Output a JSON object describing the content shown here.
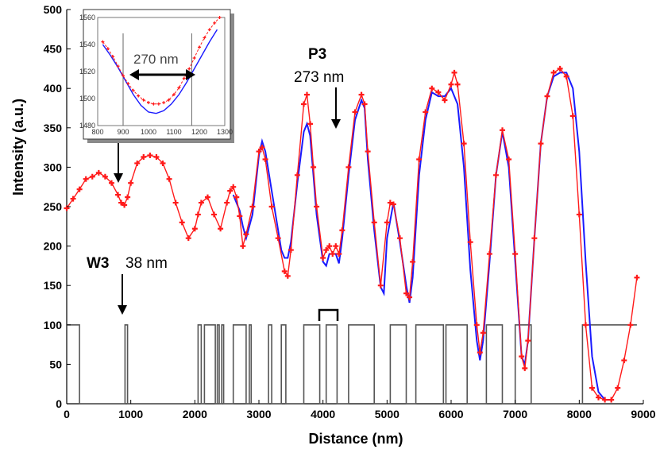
{
  "chart_data": {
    "type": "line",
    "xlabel": "Distance (nm)",
    "ylabel": "Intensity (a.u.)",
    "xlim": [
      0,
      9000
    ],
    "ylim": [
      0,
      500
    ],
    "x_ticks": [
      "0",
      "1000",
      "2000",
      "3000",
      "4000",
      "5000",
      "6000",
      "7000",
      "8000",
      "9000"
    ],
    "y_ticks": [
      "0",
      "50",
      "100",
      "150",
      "200",
      "250",
      "300",
      "350",
      "400",
      "450",
      "500"
    ],
    "colors": {
      "measured": "#ff1a1a",
      "fit": "#1a1aff",
      "pattern": "#555555"
    },
    "series": [
      {
        "style": "red-markers",
        "x": [
          0,
          100,
          200,
          300,
          400,
          500,
          600,
          700,
          800,
          850,
          900,
          950,
          1000,
          1100,
          1200,
          1300,
          1400,
          1500,
          1600,
          1700,
          1800,
          1900,
          2000,
          2050,
          2100,
          2200,
          2300,
          2400,
          2500,
          2550,
          2600,
          2650,
          2700,
          2750,
          2800,
          2900,
          3000,
          3050,
          3100,
          3200,
          3300,
          3400,
          3450,
          3500,
          3600,
          3700,
          3750,
          3800,
          3850,
          3900,
          4000,
          4050,
          4100,
          4150,
          4200,
          4250,
          4300,
          4400,
          4500,
          4600,
          4650,
          4700,
          4800,
          4900,
          5000,
          5050,
          5100,
          5200,
          5300,
          5350,
          5400,
          5500,
          5600,
          5700,
          5800,
          5900,
          6000,
          6050,
          6100,
          6200,
          6300,
          6400,
          6450,
          6500,
          6600,
          6700,
          6800,
          6900,
          7000,
          7100,
          7150,
          7200,
          7300,
          7400,
          7500,
          7600,
          7700,
          7800,
          7900,
          8000,
          8100,
          8200,
          8300,
          8400,
          8500,
          8600,
          8700,
          8800,
          8900
        ],
        "y": [
          248,
          260,
          272,
          285,
          288,
          293,
          288,
          280,
          265,
          255,
          252,
          262,
          280,
          305,
          313,
          315,
          313,
          305,
          285,
          255,
          230,
          210,
          222,
          240,
          255,
          262,
          240,
          222,
          255,
          270,
          275,
          262,
          238,
          200,
          215,
          250,
          320,
          325,
          310,
          250,
          210,
          168,
          162,
          195,
          290,
          380,
          392,
          355,
          300,
          250,
          185,
          195,
          200,
          190,
          200,
          190,
          220,
          300,
          370,
          392,
          380,
          320,
          230,
          150,
          230,
          255,
          253,
          210,
          140,
          135,
          180,
          310,
          370,
          400,
          395,
          385,
          405,
          420,
          405,
          330,
          205,
          100,
          65,
          90,
          190,
          290,
          347,
          310,
          190,
          60,
          45,
          80,
          210,
          330,
          390,
          420,
          425,
          415,
          365,
          240,
          100,
          20,
          8,
          5,
          5,
          20,
          55,
          100,
          160
        ]
      },
      {
        "style": "blue-line",
        "x": [
          2600,
          2700,
          2750,
          2800,
          2900,
          3000,
          3050,
          3100,
          3200,
          3300,
          3350,
          3400,
          3450,
          3500,
          3600,
          3700,
          3750,
          3800,
          3850,
          3900,
          4000,
          4050,
          4100,
          4150,
          4200,
          4250,
          4300,
          4400,
          4500,
          4600,
          4650,
          4700,
          4800,
          4900,
          4950,
          5000,
          5100,
          5200,
          5300,
          5350,
          5400,
          5500,
          5600,
          5700,
          5800,
          5900,
          6000,
          6100,
          6200,
          6300,
          6400,
          6450,
          6500,
          6600,
          6700,
          6800,
          6900,
          7000,
          7100,
          7150,
          7200,
          7300,
          7400,
          7500,
          7600,
          7700,
          7800,
          7900,
          8000,
          8100,
          8200,
          8300,
          8400,
          8500
        ],
        "y": [
          265,
          245,
          225,
          210,
          240,
          315,
          333,
          320,
          270,
          220,
          195,
          185,
          185,
          205,
          280,
          345,
          355,
          340,
          290,
          240,
          180,
          175,
          190,
          190,
          190,
          178,
          210,
          290,
          360,
          385,
          375,
          310,
          220,
          148,
          140,
          210,
          255,
          205,
          150,
          128,
          160,
          290,
          360,
          395,
          390,
          390,
          400,
          380,
          300,
          170,
          80,
          55,
          80,
          180,
          290,
          345,
          300,
          180,
          60,
          50,
          80,
          210,
          330,
          390,
          415,
          420,
          420,
          400,
          320,
          180,
          60,
          15,
          5,
          5
        ]
      },
      {
        "style": "gray-step",
        "x": [
          0,
          200,
          200,
          910,
          910,
          950,
          950,
          2050,
          2050,
          2100,
          2100,
          2150,
          2150,
          2320,
          2320,
          2350,
          2350,
          2380,
          2380,
          2420,
          2420,
          2450,
          2450,
          2600,
          2600,
          2800,
          2800,
          2850,
          2850,
          2880,
          2880,
          3150,
          3150,
          3200,
          3200,
          3350,
          3350,
          3420,
          3420,
          3700,
          3700,
          3950,
          3950,
          4050,
          4050,
          4220,
          4220,
          4400,
          4400,
          4800,
          4800,
          5050,
          5050,
          5300,
          5300,
          5450,
          5450,
          5880,
          5880,
          5920,
          5920,
          6250,
          6250,
          6550,
          6550,
          6800,
          6800,
          7000,
          7000,
          7250,
          7250,
          8050,
          8050,
          8900
        ],
        "y": [
          100,
          100,
          0,
          0,
          100,
          100,
          0,
          0,
          100,
          100,
          0,
          0,
          100,
          100,
          0,
          0,
          100,
          100,
          0,
          0,
          100,
          100,
          0,
          0,
          100,
          100,
          0,
          0,
          100,
          100,
          0,
          0,
          100,
          100,
          0,
          0,
          100,
          100,
          0,
          0,
          100,
          100,
          0,
          0,
          100,
          100,
          0,
          0,
          100,
          100,
          0,
          0,
          100,
          100,
          0,
          0,
          100,
          100,
          0,
          0,
          100,
          100,
          0,
          0,
          100,
          100,
          0,
          0,
          100,
          100,
          0,
          0,
          100,
          100
        ]
      }
    ],
    "annotations": {
      "p3_label": "P3",
      "p3_value": "273 nm",
      "w3_label": "W3",
      "w3_value": "38 nm"
    },
    "inset": {
      "type": "line",
      "xlim": [
        800,
        1300
      ],
      "ylim": [
        1480,
        1560
      ],
      "x_ticks": [
        "800",
        "900",
        "1000",
        "1100",
        "1200",
        "1300"
      ],
      "y_ticks": [
        "1480",
        "1500",
        "1520",
        "1540",
        "1560"
      ],
      "width_label": "270 nm",
      "series": [
        {
          "style": "red-markers",
          "x": [
            820,
            840,
            860,
            880,
            900,
            920,
            940,
            960,
            980,
            1000,
            1020,
            1040,
            1060,
            1080,
            1100,
            1120,
            1140,
            1160,
            1180,
            1200,
            1220,
            1240,
            1260,
            1280
          ],
          "y": [
            1542,
            1537,
            1531,
            1524,
            1517,
            1511,
            1506,
            1502,
            1499,
            1497,
            1496,
            1496,
            1497,
            1499,
            1503,
            1508,
            1515,
            1522,
            1530,
            1538,
            1545,
            1551,
            1556,
            1560
          ]
        },
        {
          "style": "blue-line",
          "x": [
            820,
            850,
            880,
            910,
            940,
            970,
            1000,
            1030,
            1060,
            1090,
            1120,
            1150,
            1180,
            1210,
            1240,
            1270
          ],
          "y": [
            1540,
            1532,
            1523,
            1513,
            1503,
            1495,
            1490,
            1489,
            1491,
            1496,
            1503,
            1512,
            1522,
            1532,
            1542,
            1551
          ]
        }
      ]
    }
  }
}
